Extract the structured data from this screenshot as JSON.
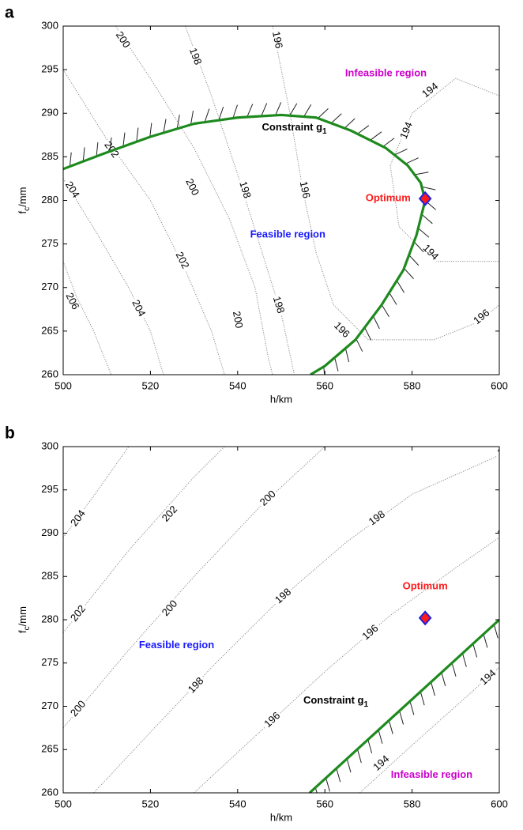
{
  "chart_data": [
    {
      "type": "contour",
      "panel": "a",
      "xlabel": "h/km",
      "ylabel": "f",
      "ylabel_sub": "c",
      "ylabel_tail": "/mm",
      "xlim": [
        500,
        600
      ],
      "ylim": [
        260,
        300
      ],
      "xticks": [
        500,
        520,
        540,
        560,
        580,
        600
      ],
      "yticks": [
        260,
        265,
        270,
        275,
        280,
        285,
        290,
        295,
        300
      ],
      "contour_color": "#8a8a8a",
      "contours": [
        {
          "level": 206,
          "x": [
            500,
            503,
            507,
            511
          ],
          "y": [
            273,
            269,
            265,
            260
          ],
          "labels": {
            "x": [
              502
            ],
            "y": [
              268.4
            ]
          }
        },
        {
          "level": 204,
          "x": [
            500,
            508,
            515,
            520,
            523
          ],
          "y": [
            282.5,
            276,
            270,
            265,
            260
          ],
          "labels": {
            "x": [
              502,
              517.2
            ],
            "y": [
              281.2,
              267.6
            ]
          }
        },
        {
          "level": 202,
          "x": [
            500,
            510,
            520,
            528,
            534,
            537
          ],
          "y": [
            295,
            287,
            280,
            272,
            265,
            260
          ],
          "labels": {
            "x": [
              511,
              527.2
            ],
            "y": [
              285.8,
              273.1
            ]
          }
        },
        {
          "level": 200,
          "x": [
            512,
            520,
            530,
            538,
            544,
            547,
            548
          ],
          "y": [
            300,
            294,
            286,
            278,
            270,
            262,
            260
          ],
          "labels": {
            "x": [
              513.6,
              529.5,
              539.9
            ],
            "y": [
              298.4,
              281.5,
              266.3
            ]
          }
        },
        {
          "level": 198,
          "x": [
            528,
            534,
            540,
            545,
            550,
            553
          ],
          "y": [
            300,
            292,
            283,
            275,
            267,
            260
          ],
          "labels": {
            "x": [
              530.2,
              541.6,
              549.3
            ],
            "y": [
              296.5,
              281.2,
              268
            ]
          }
        },
        {
          "level": 196,
          "x": [
            548,
            552,
            555,
            558,
            562,
            570,
            585,
            595,
            600
          ],
          "y": [
            300,
            290,
            281,
            274,
            268,
            264,
            264,
            266,
            268
          ],
          "labels": {
            "x": [
              549,
              555.3,
              563.8,
              596
            ],
            "y": [
              298.4,
              281.2,
              265.1,
              266.6
            ]
          }
        },
        {
          "level": 194,
          "x": [
            600,
            590,
            580,
            575,
            577,
            585,
            600
          ],
          "y": [
            292,
            294,
            290,
            284,
            277,
            273,
            273
          ],
          "labels": {
            "x": [
              584.2,
              578.8,
              584.2
            ],
            "y": [
              292.6,
              288,
              274
            ]
          }
        }
      ],
      "constraint": {
        "color": "#1e8a1e",
        "x": [
          500,
          510,
          520,
          530,
          540,
          550,
          558,
          566,
          574,
          579,
          582,
          583,
          581,
          578,
          573,
          567,
          560,
          556.7
        ],
        "y": [
          283.6,
          285.5,
          287.3,
          288.8,
          289.5,
          289.8,
          289.5,
          288,
          286,
          284,
          282,
          280,
          276,
          272,
          268,
          264,
          261,
          260
        ]
      },
      "optimum": {
        "x": 583,
        "y": 280.2,
        "color": "#ff1a1a",
        "edge": "#1f1fe0"
      },
      "annotations": [
        {
          "text": "Infeasible region",
          "x": 574,
          "y": 294.5,
          "color": "#cc00cc"
        },
        {
          "text": "Constraint g",
          "sub": "1",
          "x": 553,
          "y": 288.3,
          "color": "#000000"
        },
        {
          "text": "Optimum",
          "x": 574.5,
          "y": 280.2,
          "color": "#ff1a1a"
        },
        {
          "text": "Feasible region",
          "x": 551.5,
          "y": 276,
          "color": "#1a1aff"
        }
      ]
    },
    {
      "type": "contour",
      "panel": "b",
      "xlabel": "h/km",
      "ylabel": "f",
      "ylabel_sub": "c",
      "ylabel_tail": "/mm",
      "xlim": [
        500,
        600
      ],
      "ylim": [
        260,
        300
      ],
      "xticks": [
        500,
        520,
        540,
        560,
        580,
        600
      ],
      "yticks": [
        260,
        265,
        270,
        275,
        280,
        285,
        290,
        295,
        300
      ],
      "contour_color": "#8a8a8a",
      "contours": [
        {
          "level": 204,
          "x": [
            500,
            508,
            515
          ],
          "y": [
            289.5,
            295,
            300
          ],
          "labels": {
            "x": [
              503.5
            ]
          },
          "ly": [
            291.7
          ]
        },
        {
          "level": 202,
          "x": [
            500,
            515,
            530,
            537
          ],
          "y": [
            278.5,
            288,
            296.5,
            300
          ],
          "labels": {
            "x": [
              503.5,
              524.5
            ],
            "y": [
              280.7,
              292.2
            ]
          }
        },
        {
          "level": 200,
          "x": [
            500,
            515,
            530,
            545,
            560
          ],
          "y": [
            267.5,
            276.5,
            285,
            293,
            300
          ],
          "labels": {
            "x": [
              503.5,
              524.5,
              547
            ],
            "y": [
              269.7,
              281.3,
              294
            ]
          }
        },
        {
          "level": 198,
          "x": [
            507,
            520,
            535,
            550,
            565,
            580,
            600
          ],
          "y": [
            260,
            267,
            275,
            282.5,
            289,
            294.5,
            299
          ],
          "labels": {
            "x": [
              530.5,
              550.5,
              572,
              601.5
            ],
            "y": [
              272.4,
              282.7,
              291.7,
              299.5
            ]
          }
        },
        {
          "level": 196,
          "x": [
            530,
            545,
            560,
            575,
            590,
            600
          ],
          "y": [
            260,
            267,
            274,
            280.5,
            286,
            289.5
          ],
          "labels": {
            "x": [
              548,
              570.5,
              601.5
            ],
            "y": [
              268.4,
              278.5,
              290.3
            ]
          }
        },
        {
          "level": 194,
          "x": [
            568,
            580,
            590,
            600
          ],
          "y": [
            260,
            265.5,
            270,
            274.5
          ],
          "labels": {
            "x": [
              573,
              597.5
            ],
            "y": [
              263.4,
              273.3
            ]
          }
        }
      ],
      "constraint": {
        "color": "#1e8a1e",
        "x": [
          600,
          556.5
        ],
        "y": [
          280,
          260
        ]
      },
      "optimum": {
        "x": 583,
        "y": 280.2,
        "color": "#ff1a1a",
        "edge": "#1f1fe0"
      },
      "annotations": [
        {
          "text": "Optimum",
          "x": 583,
          "y": 283.8,
          "color": "#ff1a1a"
        },
        {
          "text": "Feasible region",
          "x": 526,
          "y": 277,
          "color": "#1a1aff"
        },
        {
          "text": "Constraint g",
          "sub": "1",
          "x": 562.5,
          "y": 270.6,
          "color": "#000000"
        },
        {
          "text": "Infeasible region",
          "x": 584.5,
          "y": 262,
          "color": "#cc00cc"
        }
      ]
    }
  ]
}
